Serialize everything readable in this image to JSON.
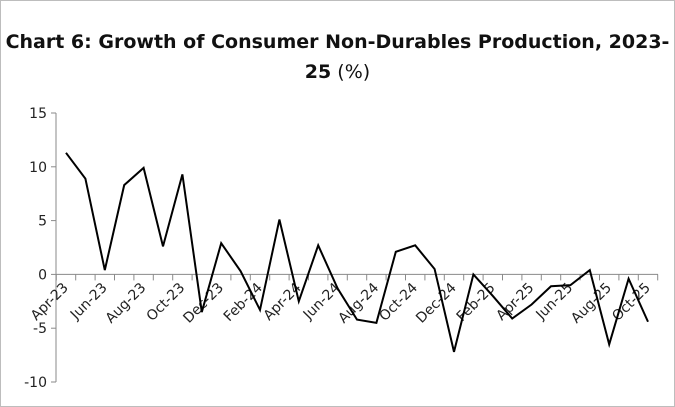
{
  "chart_data": {
    "type": "line",
    "title": "Chart 6: Growth of Consumer Non-Durables Production, 2023-25",
    "title_unit": "(%)",
    "xlabel": "",
    "ylabel": "",
    "ylim": [
      -10,
      15
    ],
    "yticks": [
      -10,
      -5,
      0,
      5,
      10,
      15
    ],
    "grid": false,
    "legend": "none",
    "line_color": "#000000",
    "x": [
      "Apr-23",
      "May-23",
      "Jun-23",
      "Jul-23",
      "Aug-23",
      "Sep-23",
      "Oct-23",
      "Nov-23",
      "Dec-23",
      "Jan-24",
      "Feb-24",
      "Mar-24",
      "Apr-24",
      "May-24",
      "Jun-24",
      "Jul-24",
      "Aug-24",
      "Sep-24",
      "Oct-24",
      "Nov-24",
      "Dec-24",
      "Jan-25",
      "Feb-25",
      "Mar-25",
      "Apr-25",
      "May-25",
      "Jun-25",
      "Jul-25",
      "Aug-25",
      "Sep-25",
      "Oct-25"
    ],
    "xtick_labels": [
      "Apr-23",
      "Jun-23",
      "Aug-23",
      "Oct-23",
      "Dec-23",
      "Feb-24",
      "Apr-24",
      "Jun-24",
      "Aug-24",
      "Oct-24",
      "Dec-24",
      "Feb-25",
      "Apr-25",
      "Jun-25",
      "Aug-25",
      "Oct-25"
    ],
    "values": [
      11.3,
      8.9,
      0.4,
      8.3,
      9.9,
      2.6,
      9.3,
      -3.5,
      2.9,
      0.3,
      -3.3,
      5.1,
      -2.5,
      2.7,
      -1.3,
      -4.2,
      -4.5,
      2.1,
      2.7,
      0.5,
      -7.2,
      0.0,
      -2.0,
      -4.1,
      -2.8,
      -1.1,
      -1.0,
      0.4,
      -6.5,
      -0.4,
      -4.4
    ]
  }
}
